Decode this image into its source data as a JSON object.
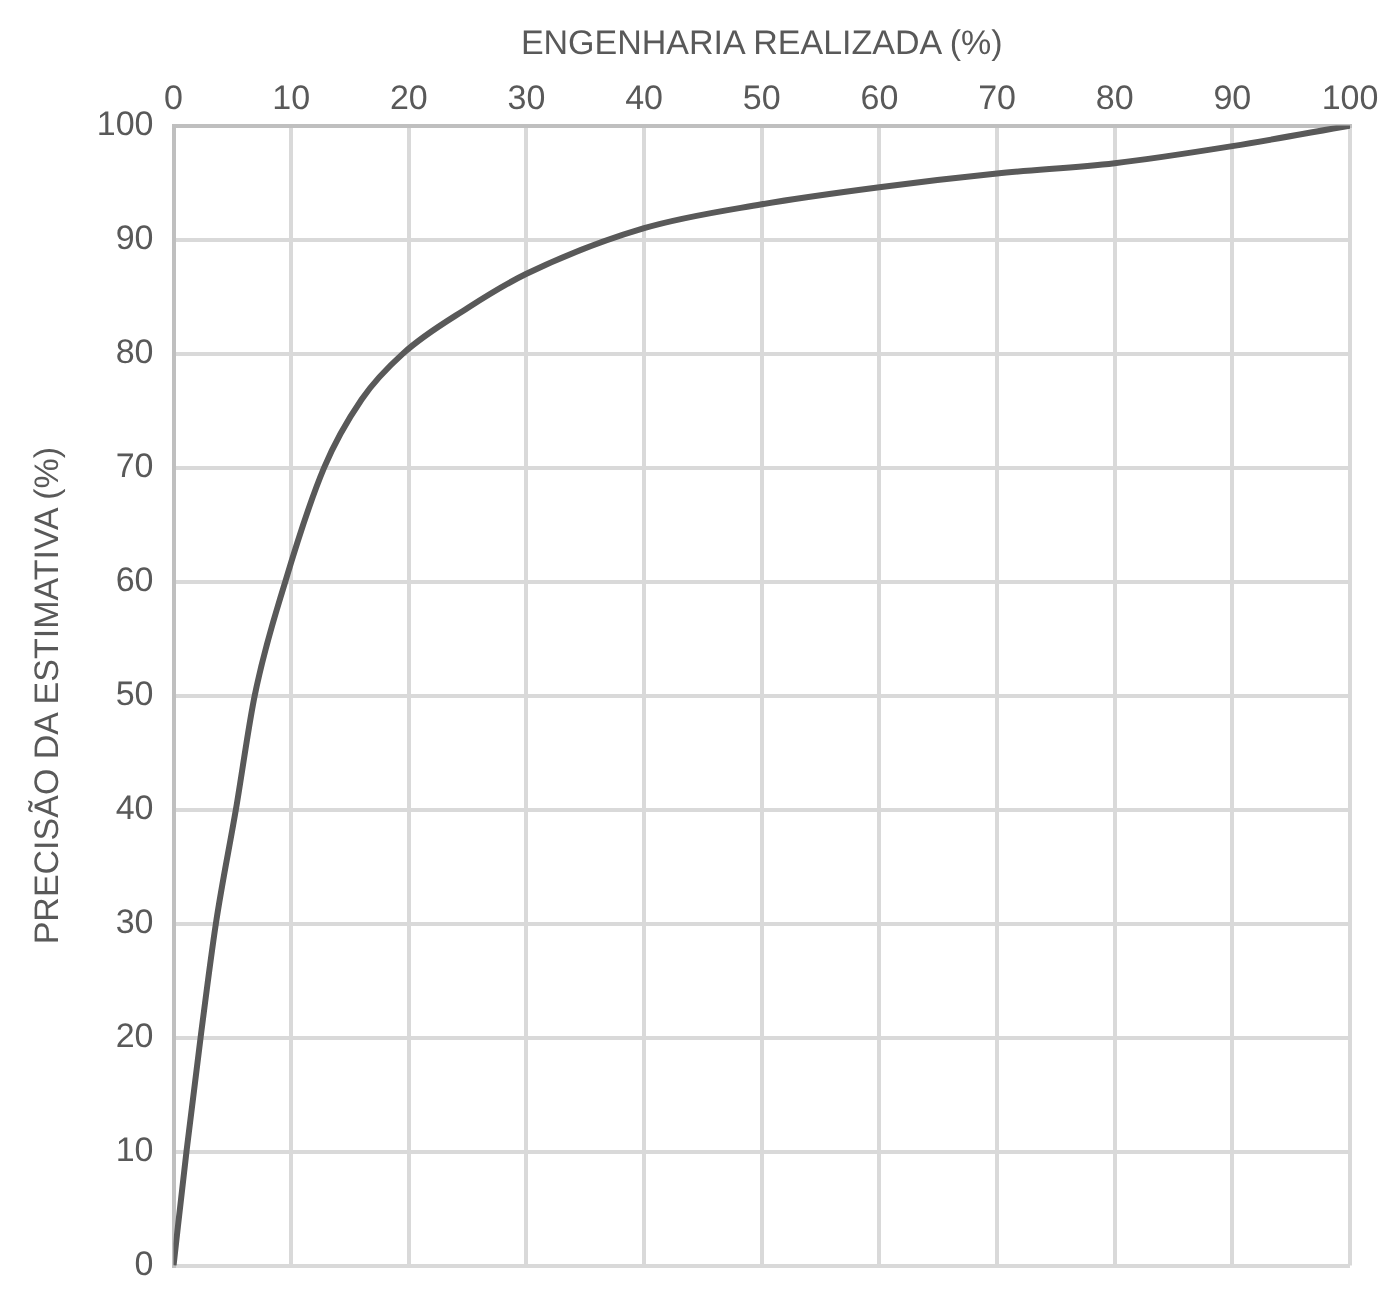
{
  "chart_data": {
    "type": "line",
    "xlabel": "ENGENHARIA REALIZADA (%)",
    "ylabel": "PRECISÃO DA ESTIMATIVA (%)",
    "x": [
      0,
      1.1,
      2.3,
      3.6,
      5.3,
      6.9,
      9.5,
      12.8,
      16,
      19.5,
      25,
      30,
      40,
      50,
      60,
      70,
      80,
      90,
      100
    ],
    "series": [
      {
        "color": "#595959",
        "values": [
          0,
          10,
          20,
          30,
          40,
          50,
          60,
          70,
          76,
          80,
          84,
          87,
          91,
          93.1,
          94.6,
          95.8,
          96.7,
          98.2,
          100
        ]
      }
    ],
    "xlim": [
      0,
      100
    ],
    "xticks": [
      0,
      10,
      20,
      30,
      40,
      50,
      60,
      70,
      80,
      90,
      100
    ],
    "ylim": [
      0,
      100
    ],
    "yticks": [
      0,
      10,
      20,
      30,
      40,
      50,
      60,
      70,
      80,
      90,
      100
    ],
    "grid": true,
    "legend": false,
    "marker": "none",
    "line_style": "solid"
  }
}
